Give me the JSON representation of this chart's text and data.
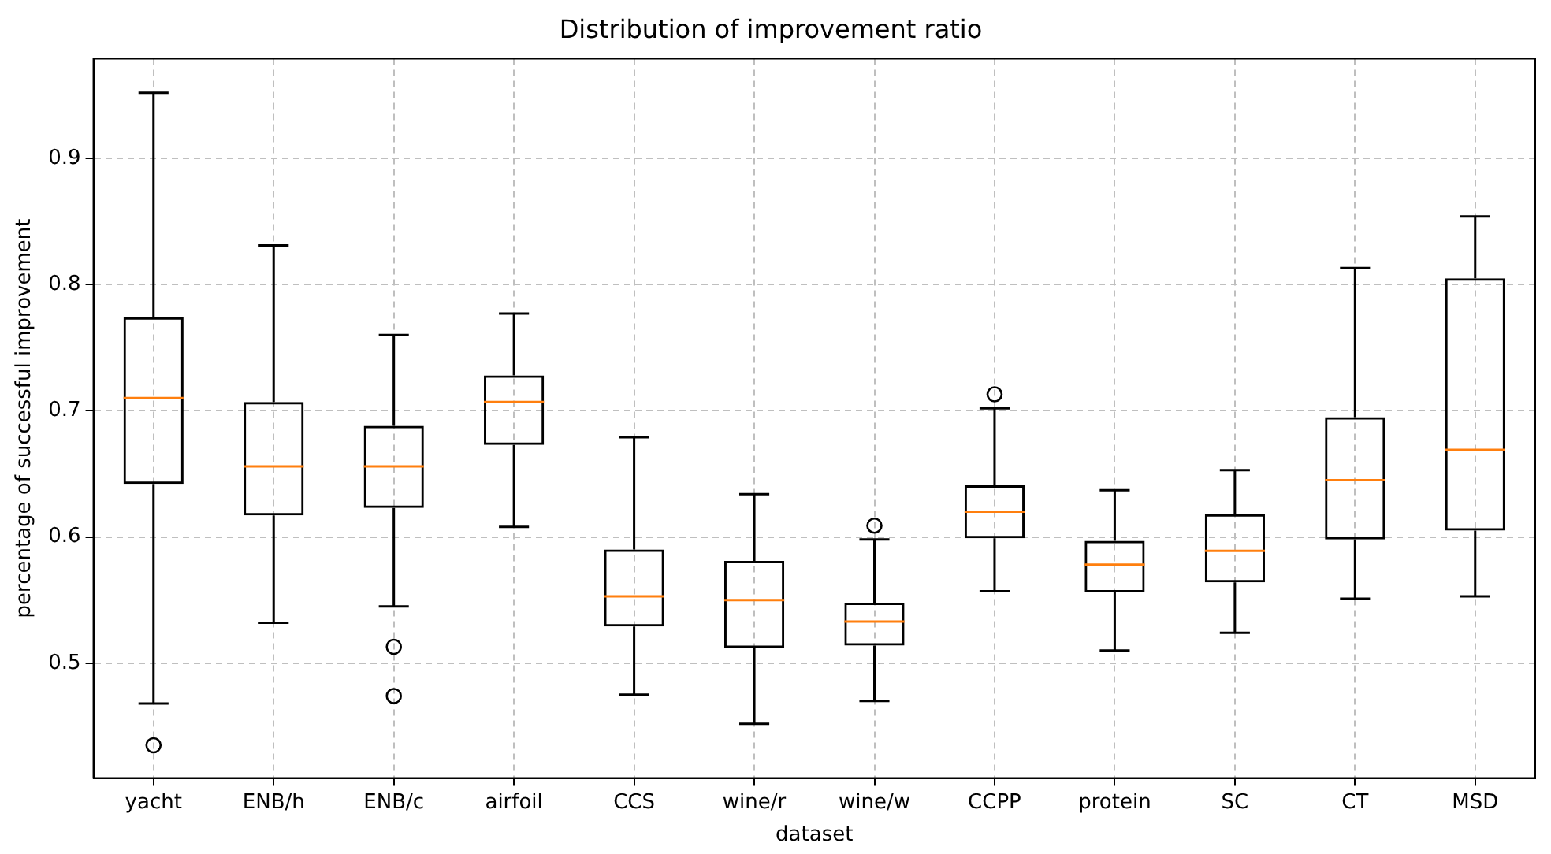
{
  "chart_data": {
    "type": "box",
    "title": "Distribution of improvement ratio",
    "xlabel": "dataset",
    "ylabel": "percentage of successful improvement",
    "categories": [
      "yacht",
      "ENB/h",
      "ENB/c",
      "airfoil",
      "CCS",
      "wine/r",
      "wine/w",
      "CCPP",
      "protein",
      "SC",
      "CT",
      "MSD"
    ],
    "color": "#000000",
    "boxes": [
      {
        "low": 0.468,
        "q1": 0.642,
        "median": 0.71,
        "q3": 0.774,
        "high": 0.952,
        "outliers": [
          0.435
        ]
      },
      {
        "low": 0.532,
        "q1": 0.617,
        "median": 0.656,
        "q3": 0.707,
        "high": 0.831
      },
      {
        "low": 0.545,
        "q1": 0.623,
        "median": 0.656,
        "q3": 0.688,
        "high": 0.76,
        "outliers": [
          0.513,
          0.474
        ]
      },
      {
        "low": 0.608,
        "q1": 0.673,
        "median": 0.707,
        "q3": 0.728,
        "high": 0.777
      },
      {
        "low": 0.475,
        "q1": 0.529,
        "median": 0.553,
        "q3": 0.59,
        "high": 0.679
      },
      {
        "low": 0.452,
        "q1": 0.512,
        "median": 0.55,
        "q3": 0.581,
        "high": 0.634
      },
      {
        "low": 0.47,
        "q1": 0.514,
        "median": 0.533,
        "q3": 0.548,
        "high": 0.598,
        "outliers": [
          0.609
        ]
      },
      {
        "low": 0.557,
        "q1": 0.599,
        "median": 0.62,
        "q3": 0.641,
        "high": 0.702,
        "outliers": [
          0.713
        ]
      },
      {
        "low": 0.51,
        "q1": 0.556,
        "median": 0.578,
        "q3": 0.597,
        "high": 0.637
      },
      {
        "low": 0.524,
        "q1": 0.564,
        "median": 0.589,
        "q3": 0.618,
        "high": 0.653
      },
      {
        "low": 0.551,
        "q1": 0.598,
        "median": 0.645,
        "q3": 0.695,
        "high": 0.813
      },
      {
        "low": 0.553,
        "q1": 0.605,
        "median": 0.669,
        "q3": 0.805,
        "high": 0.854
      }
    ],
    "ylim": [
      0.409,
      0.979
    ],
    "yticks": [
      0.5,
      0.6,
      0.7,
      0.8,
      0.9
    ],
    "grid": true
  }
}
